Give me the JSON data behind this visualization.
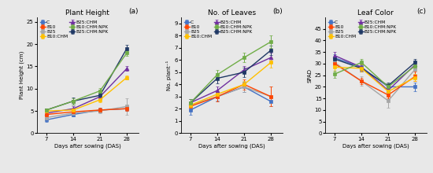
{
  "x": [
    7,
    14,
    21,
    28
  ],
  "panel_a": {
    "title": "Plant Height",
    "ylabel": "Plant Height (cm)",
    "xlabel": "Days after sowing (DAS)",
    "label": "(a)",
    "ylim": [
      0,
      26
    ],
    "yticks": [
      0,
      5,
      10,
      15,
      20,
      25
    ],
    "series": {
      "C": {
        "y": [
          3.0,
          4.2,
          5.2,
          5.5
        ],
        "err": [
          0.5,
          0.4,
          0.5,
          0.5
        ],
        "color": "#4472C4",
        "marker": "s"
      },
      "B25": {
        "y": [
          3.5,
          4.5,
          5.0,
          6.0
        ],
        "err": [
          0.5,
          0.5,
          0.5,
          1.8
        ],
        "color": "#A6A6A6",
        "marker": "s"
      },
      "B25:CHM": {
        "y": [
          4.5,
          5.5,
          8.2,
          14.5
        ],
        "err": [
          0.4,
          0.5,
          0.5,
          0.5
        ],
        "color": "#7030A0",
        "marker": "^"
      },
      "B25:CHM:NPK": {
        "y": [
          5.2,
          7.2,
          8.5,
          19.0
        ],
        "err": [
          0.4,
          0.8,
          0.6,
          0.8
        ],
        "color": "#1F3864",
        "marker": "s"
      },
      "B10": {
        "y": [
          4.2,
          4.8,
          5.2,
          5.5
        ],
        "err": [
          0.5,
          0.5,
          0.5,
          0.5
        ],
        "color": "#FF4500",
        "marker": "s"
      },
      "B10:CHM": {
        "y": [
          5.0,
          5.2,
          7.5,
          12.5
        ],
        "err": [
          0.4,
          0.5,
          0.5,
          0.5
        ],
        "color": "#FFC000",
        "marker": "s"
      },
      "B10:CHM:NPK": {
        "y": [
          5.2,
          7.2,
          9.5,
          18.0
        ],
        "err": [
          0.4,
          0.7,
          0.6,
          0.6
        ],
        "color": "#70AD47",
        "marker": "s"
      }
    }
  },
  "panel_b": {
    "title": "No. of Leaves",
    "ylabel": "No. plant⁻¹",
    "xlabel": "Days after sowing (DAS)",
    "label": "(b)",
    "ylim": [
      0,
      9.5
    ],
    "yticks": [
      0,
      1,
      2,
      3,
      4,
      5,
      6,
      7,
      8,
      9
    ],
    "series": {
      "C": {
        "y": [
          1.9,
          3.0,
          3.8,
          2.6
        ],
        "err": [
          0.4,
          0.3,
          0.4,
          0.4
        ],
        "color": "#4472C4",
        "marker": "s"
      },
      "B25": {
        "y": [
          2.3,
          3.0,
          3.8,
          3.0
        ],
        "err": [
          0.3,
          0.4,
          0.4,
          0.8
        ],
        "color": "#A6A6A6",
        "marker": "s"
      },
      "B25:CHM": {
        "y": [
          2.5,
          3.5,
          5.2,
          6.2
        ],
        "err": [
          0.3,
          0.3,
          0.3,
          0.4
        ],
        "color": "#7030A0",
        "marker": "^"
      },
      "B25:CHM:NPK": {
        "y": [
          2.5,
          4.5,
          5.0,
          6.8
        ],
        "err": [
          0.3,
          0.4,
          0.4,
          0.4
        ],
        "color": "#1F3864",
        "marker": "s"
      },
      "B10": {
        "y": [
          2.2,
          3.0,
          4.0,
          3.0
        ],
        "err": [
          0.3,
          0.4,
          0.4,
          0.8
        ],
        "color": "#FF4500",
        "marker": "s"
      },
      "B10:CHM": {
        "y": [
          2.3,
          3.2,
          4.0,
          5.8
        ],
        "err": [
          0.3,
          0.3,
          0.3,
          0.4
        ],
        "color": "#FFC000",
        "marker": "s"
      },
      "B10:CHM:NPK": {
        "y": [
          2.5,
          4.8,
          6.2,
          7.5
        ],
        "err": [
          0.3,
          0.4,
          0.4,
          0.5
        ],
        "color": "#70AD47",
        "marker": "s"
      }
    }
  },
  "panel_c": {
    "title": "Leaf Color",
    "ylabel": "SPAD",
    "xlabel": "Days after sowing (DAS)",
    "label": "(c)",
    "ylim": [
      0,
      50
    ],
    "yticks": [
      0,
      5,
      10,
      15,
      20,
      25,
      30,
      35,
      40,
      45
    ],
    "series": {
      "C": {
        "y": [
          32.5,
          28.5,
          20.0,
          20.0
        ],
        "err": [
          1.5,
          2.0,
          1.5,
          2.0
        ],
        "color": "#4472C4",
        "marker": "s"
      },
      "B25": {
        "y": [
          30.5,
          22.5,
          14.0,
          27.5
        ],
        "err": [
          1.5,
          2.0,
          3.0,
          2.0
        ],
        "color": "#A6A6A6",
        "marker": "s"
      },
      "B25:CHM": {
        "y": [
          33.5,
          28.5,
          18.5,
          29.5
        ],
        "err": [
          1.5,
          1.5,
          1.5,
          1.5
        ],
        "color": "#7030A0",
        "marker": "^"
      },
      "B25:CHM:NPK": {
        "y": [
          32.0,
          28.0,
          20.5,
          30.5
        ],
        "err": [
          1.5,
          1.5,
          1.5,
          1.5
        ],
        "color": "#1F3864",
        "marker": "s"
      },
      "B10": {
        "y": [
          30.0,
          22.5,
          16.5,
          24.5
        ],
        "err": [
          1.5,
          1.5,
          1.5,
          2.0
        ],
        "color": "#FF4500",
        "marker": "s"
      },
      "B10:CHM": {
        "y": [
          28.5,
          28.0,
          18.0,
          24.0
        ],
        "err": [
          1.5,
          1.5,
          1.5,
          1.5
        ],
        "color": "#FFC000",
        "marker": "s"
      },
      "B10:CHM:NPK": {
        "y": [
          25.5,
          30.5,
          20.0,
          29.0
        ],
        "err": [
          1.5,
          1.5,
          1.5,
          1.5
        ],
        "color": "#70AD47",
        "marker": "s"
      }
    }
  },
  "left_col": [
    "C",
    "B25",
    "B25:CHM",
    "B25:CHM:NPK"
  ],
  "right_col": [
    "B10",
    "B10:CHM",
    "B10:CHM:NPK"
  ],
  "markersize": 3.5,
  "linewidth": 1.0,
  "capsize": 1.5,
  "elinewidth": 0.7,
  "fig_bg": "#E8E8E8"
}
